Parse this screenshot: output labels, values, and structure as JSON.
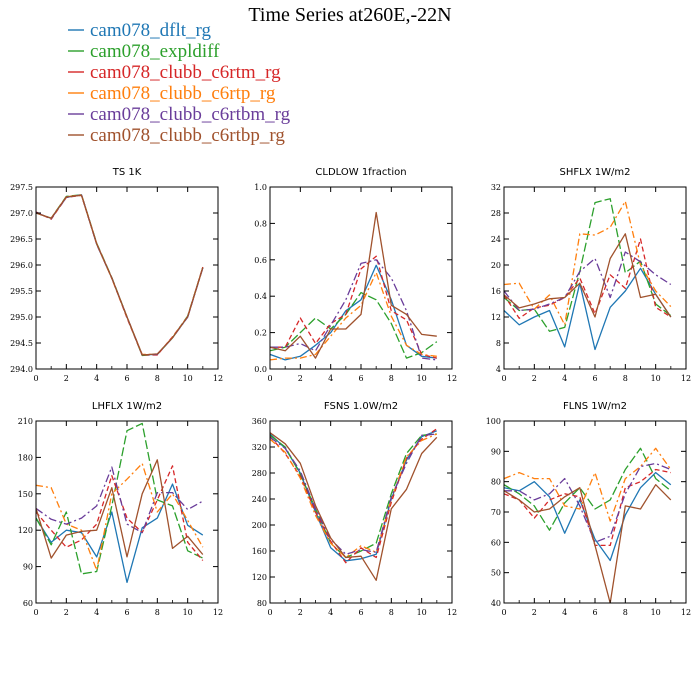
{
  "title": "Time Series at260E,-22N",
  "legend": [
    {
      "name": "cam078_dflt_rg",
      "color": "#1f77b4"
    },
    {
      "name": "cam078_expldiff",
      "color": "#2ca02c"
    },
    {
      "name": "cam078_clubb_c6rtm_rg",
      "color": "#d62728"
    },
    {
      "name": "cam078_clubb_c6rtp_rg",
      "color": "#ff7f0e"
    },
    {
      "name": "cam078_clubb_c6rtbm_rg",
      "color": "#6a3d9a"
    },
    {
      "name": "cam078_clubb_c6rtbp_rg",
      "color": "#a0522d"
    }
  ],
  "chart_data": [
    {
      "type": "line",
      "title": "TS  1K",
      "xlim": [
        0,
        12
      ],
      "ylim": [
        294.0,
        297.5
      ],
      "xticks": [
        0,
        2,
        4,
        6,
        8,
        10,
        12
      ],
      "yticks": [
        294.0,
        294.5,
        295.0,
        295.5,
        296.0,
        296.5,
        297.0,
        297.5
      ],
      "ytick_labels": [
        "294.0",
        "294.5",
        "295.0",
        "295.5",
        "296.0",
        "296.5",
        "297.0",
        "297.5"
      ],
      "x": [
        0,
        1,
        2,
        3,
        4,
        5,
        6,
        7,
        8,
        9,
        10,
        11
      ],
      "series": [
        {
          "name": "cam078_dflt_rg",
          "values": [
            297.0,
            296.9,
            297.3,
            297.35,
            296.4,
            295.75,
            295.0,
            294.27,
            294.28,
            294.6,
            295.0,
            295.95
          ]
        },
        {
          "name": "cam078_expldiff",
          "values": [
            297.0,
            296.9,
            297.32,
            297.35,
            296.42,
            295.76,
            295.0,
            294.26,
            294.28,
            294.6,
            295.02,
            295.95
          ]
        },
        {
          "name": "cam078_clubb_c6rtm_rg",
          "values": [
            297.02,
            296.88,
            297.3,
            297.34,
            296.4,
            295.75,
            294.98,
            294.27,
            294.27,
            294.62,
            295.0,
            295.96
          ]
        },
        {
          "name": "cam078_clubb_c6rtp_rg",
          "values": [
            297.0,
            296.9,
            297.31,
            297.35,
            296.41,
            295.74,
            295.0,
            294.28,
            294.28,
            294.61,
            295.01,
            295.95
          ]
        },
        {
          "name": "cam078_clubb_c6rtbm_rg",
          "values": [
            297.01,
            296.89,
            297.3,
            297.35,
            296.4,
            295.75,
            295.0,
            294.27,
            294.28,
            294.6,
            295.0,
            295.94
          ]
        },
        {
          "name": "cam078_clubb_c6rtbp_rg",
          "values": [
            297.0,
            296.9,
            297.31,
            297.34,
            296.41,
            295.75,
            295.0,
            294.27,
            294.29,
            294.6,
            295.01,
            295.95
          ]
        }
      ]
    },
    {
      "type": "line",
      "title": "CLDLOW  1fraction",
      "xlim": [
        0,
        12
      ],
      "ylim": [
        0.0,
        1.0
      ],
      "xticks": [
        0,
        2,
        4,
        6,
        8,
        10,
        12
      ],
      "yticks": [
        0.0,
        0.2,
        0.4,
        0.6,
        0.8,
        1.0
      ],
      "ytick_labels": [
        "0.0",
        "0.2",
        "0.4",
        "0.6",
        "0.8",
        "1.0"
      ],
      "x": [
        0,
        1,
        2,
        3,
        4,
        5,
        6,
        7,
        8,
        9,
        10,
        11
      ],
      "series": [
        {
          "name": "cam078_dflt_rg",
          "values": [
            0.08,
            0.05,
            0.07,
            0.13,
            0.2,
            0.32,
            0.38,
            0.57,
            0.38,
            0.13,
            0.07,
            0.06
          ]
        },
        {
          "name": "cam078_expldiff",
          "values": [
            0.1,
            0.12,
            0.2,
            0.28,
            0.22,
            0.3,
            0.42,
            0.38,
            0.25,
            0.06,
            0.09,
            0.15
          ]
        },
        {
          "name": "cam078_clubb_c6rtm_rg",
          "values": [
            0.12,
            0.12,
            0.28,
            0.14,
            0.25,
            0.3,
            0.55,
            0.62,
            0.32,
            0.27,
            0.08,
            0.06
          ]
        },
        {
          "name": "cam078_clubb_c6rtp_rg",
          "values": [
            0.05,
            0.06,
            0.06,
            0.08,
            0.18,
            0.28,
            0.35,
            0.53,
            0.29,
            0.13,
            0.08,
            0.07
          ]
        },
        {
          "name": "cam078_clubb_c6rtbm_rg",
          "values": [
            0.12,
            0.12,
            0.14,
            0.1,
            0.24,
            0.38,
            0.58,
            0.6,
            0.5,
            0.32,
            0.06,
            0.05
          ]
        },
        {
          "name": "cam078_clubb_c6rtbp_rg",
          "values": [
            0.12,
            0.1,
            0.18,
            0.06,
            0.22,
            0.22,
            0.3,
            0.86,
            0.35,
            0.3,
            0.19,
            0.18
          ]
        }
      ]
    },
    {
      "type": "line",
      "title": "SHFLX  1W/m2",
      "xlim": [
        0,
        12
      ],
      "ylim": [
        4,
        32
      ],
      "xticks": [
        0,
        2,
        4,
        6,
        8,
        10,
        12
      ],
      "yticks": [
        4,
        8,
        12,
        16,
        20,
        24,
        28,
        32
      ],
      "ytick_labels": [
        "4",
        "8",
        "12",
        "16",
        "20",
        "24",
        "28",
        "32"
      ],
      "x": [
        0,
        1,
        2,
        3,
        4,
        5,
        6,
        7,
        8,
        9,
        10,
        11
      ],
      "series": [
        {
          "name": "cam078_dflt_rg",
          "values": [
            13.0,
            10.8,
            12.0,
            13.0,
            7.4,
            17.2,
            7.0,
            13.5,
            16.0,
            19.5,
            15.5,
            12.0
          ]
        },
        {
          "name": "cam078_expldiff",
          "values": [
            15.0,
            13.0,
            13.2,
            9.8,
            10.4,
            19.0,
            29.6,
            30.2,
            18.8,
            20.6,
            14.0,
            12.2
          ]
        },
        {
          "name": "cam078_clubb_c6rtm_rg",
          "values": [
            15.4,
            11.8,
            13.4,
            13.8,
            15.0,
            18.0,
            12.5,
            18.5,
            16.4,
            24.0,
            13.5,
            12.0
          ]
        },
        {
          "name": "cam078_clubb_c6rtp_rg",
          "values": [
            17.0,
            17.2,
            13.2,
            15.4,
            10.8,
            24.8,
            24.6,
            25.8,
            29.8,
            20.0,
            16.0,
            13.6
          ]
        },
        {
          "name": "cam078_clubb_c6rtbm_rg",
          "values": [
            16.0,
            13.0,
            13.2,
            14.0,
            15.0,
            19.0,
            21.0,
            15.0,
            22.0,
            20.5,
            18.5,
            17.0
          ]
        },
        {
          "name": "cam078_clubb_c6rtbp_rg",
          "values": [
            15.4,
            13.4,
            14.0,
            14.8,
            15.0,
            17.2,
            12.0,
            21.0,
            24.8,
            15.0,
            15.5,
            12.0
          ]
        }
      ]
    },
    {
      "type": "line",
      "title": "LHFLX  1W/m2",
      "xlim": [
        0,
        12
      ],
      "ylim": [
        60,
        210
      ],
      "xticks": [
        0,
        2,
        4,
        6,
        8,
        10,
        12
      ],
      "yticks": [
        60,
        90,
        120,
        150,
        180,
        210
      ],
      "ytick_labels": [
        "60",
        "90",
        "120",
        "150",
        "180",
        "210"
      ],
      "x": [
        0,
        1,
        2,
        3,
        4,
        5,
        6,
        7,
        8,
        9,
        10,
        11
      ],
      "series": [
        {
          "name": "cam078_dflt_rg",
          "values": [
            130,
            110,
            120,
            118,
            98,
            135,
            77,
            122,
            130,
            158,
            124,
            116
          ]
        },
        {
          "name": "cam078_expldiff",
          "values": [
            130,
            108,
            135,
            84,
            86,
            140,
            202,
            208,
            145,
            140,
            103,
            97
          ]
        },
        {
          "name": "cam078_clubb_c6rtm_rg",
          "values": [
            135,
            120,
            106,
            112,
            125,
            165,
            130,
            118,
            145,
            173,
            110,
            95
          ]
        },
        {
          "name": "cam078_clubb_c6rtp_rg",
          "values": [
            157,
            155,
            125,
            120,
            87,
            150,
            162,
            175,
            135,
            150,
            128,
            106
          ]
        },
        {
          "name": "cam078_clubb_c6rtbm_rg",
          "values": [
            138,
            129,
            125,
            130,
            140,
            172,
            125,
            118,
            151,
            151,
            137,
            144
          ]
        },
        {
          "name": "cam078_clubb_c6rtbp_rg",
          "values": [
            138,
            97,
            116,
            119,
            120,
            155,
            98,
            150,
            178,
            105,
            115,
            100
          ]
        }
      ]
    },
    {
      "type": "line",
      "title": "FSNS  1.0W/m2",
      "xlim": [
        0,
        12
      ],
      "ylim": [
        80,
        360
      ],
      "xticks": [
        0,
        2,
        4,
        6,
        8,
        10,
        12
      ],
      "yticks": [
        80,
        120,
        160,
        200,
        240,
        280,
        320,
        360
      ],
      "ytick_labels": [
        "80",
        "120",
        "160",
        "200",
        "240",
        "280",
        "320",
        "360"
      ],
      "x": [
        0,
        1,
        2,
        3,
        4,
        5,
        6,
        7,
        8,
        9,
        10,
        11
      ],
      "series": [
        {
          "name": "cam078_dflt_rg",
          "values": [
            340,
            318,
            280,
            220,
            165,
            145,
            148,
            155,
            240,
            300,
            336,
            345
          ]
        },
        {
          "name": "cam078_expldiff",
          "values": [
            338,
            320,
            278,
            225,
            172,
            150,
            160,
            172,
            248,
            310,
            338,
            340
          ]
        },
        {
          "name": "cam078_clubb_c6rtm_rg",
          "values": [
            336,
            310,
            275,
            220,
            175,
            142,
            165,
            150,
            235,
            303,
            332,
            348
          ]
        },
        {
          "name": "cam078_clubb_c6rtp_rg",
          "values": [
            332,
            312,
            272,
            215,
            172,
            150,
            168,
            158,
            240,
            305,
            330,
            340
          ]
        },
        {
          "name": "cam078_clubb_c6rtbm_rg",
          "values": [
            335,
            318,
            283,
            225,
            178,
            155,
            162,
            158,
            243,
            295,
            338,
            340
          ]
        },
        {
          "name": "cam078_clubb_c6rtbp_rg",
          "values": [
            342,
            325,
            295,
            230,
            180,
            150,
            152,
            115,
            225,
            255,
            310,
            335
          ]
        }
      ]
    },
    {
      "type": "line",
      "title": "FLNS  1W/m2",
      "xlim": [
        0,
        12
      ],
      "ylim": [
        40,
        100
      ],
      "xticks": [
        0,
        2,
        4,
        6,
        8,
        10,
        12
      ],
      "yticks": [
        40,
        50,
        60,
        70,
        80,
        90,
        100
      ],
      "ytick_labels": [
        "40",
        "50",
        "60",
        "70",
        "80",
        "90",
        "100"
      ],
      "x": [
        0,
        1,
        2,
        3,
        4,
        5,
        6,
        7,
        8,
        9,
        10,
        11
      ],
      "series": [
        {
          "name": "cam078_dflt_rg",
          "values": [
            78,
            77,
            80,
            75,
            63,
            74,
            61,
            54,
            69,
            78,
            83,
            79
          ]
        },
        {
          "name": "cam078_expldiff",
          "values": [
            79,
            76,
            72,
            64,
            73,
            78,
            71,
            74,
            84,
            91,
            81,
            77
          ]
        },
        {
          "name": "cam078_clubb_c6rtm_rg",
          "values": [
            76,
            74,
            68,
            74,
            76,
            75,
            59,
            59,
            78,
            80,
            84,
            83
          ]
        },
        {
          "name": "cam078_clubb_c6rtp_rg",
          "values": [
            81,
            83,
            81,
            81,
            72,
            71,
            83,
            67,
            81,
            85,
            91,
            84
          ]
        },
        {
          "name": "cam078_clubb_c6rtbm_rg",
          "values": [
            77,
            77,
            74,
            76,
            81,
            72,
            60,
            62,
            76,
            85,
            86,
            84
          ]
        },
        {
          "name": "cam078_clubb_c6rtbp_rg",
          "values": [
            77,
            74,
            70,
            71,
            75,
            78,
            59,
            40,
            72,
            71,
            79,
            74
          ]
        }
      ]
    }
  ]
}
